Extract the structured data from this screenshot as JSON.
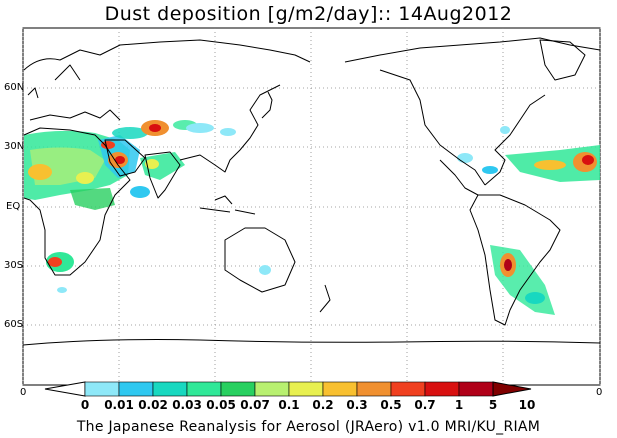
{
  "title": "Dust deposition [g/m2/day]:: 14Aug2012",
  "footer": "The Japanese Reanalysis for Aerosol (JRAero) v1.0 MRI/KU_RIAM",
  "lat_labels": {
    "n60": "60N",
    "n30": "30N",
    "eq": "EQ",
    "s30": "30S",
    "s60": "60S"
  },
  "corner_zero": "0",
  "colorbar": {
    "levels": [
      "0",
      "0.01",
      "0.02",
      "0.03",
      "0.05",
      "0.07",
      "0.1",
      "0.2",
      "0.3",
      "0.5",
      "0.7",
      "1",
      "5",
      "10"
    ],
    "colors": [
      "#ffffff",
      "#8ee8f8",
      "#2fc8f0",
      "#18d8c0",
      "#30e898",
      "#28d060",
      "#b8f070",
      "#e8f050",
      "#f8c030",
      "#f09030",
      "#f04020",
      "#d81010",
      "#b00018",
      "#800000"
    ]
  },
  "colors": {
    "land_outline": "#000000",
    "grid": "#888888",
    "background": "#ffffff"
  }
}
